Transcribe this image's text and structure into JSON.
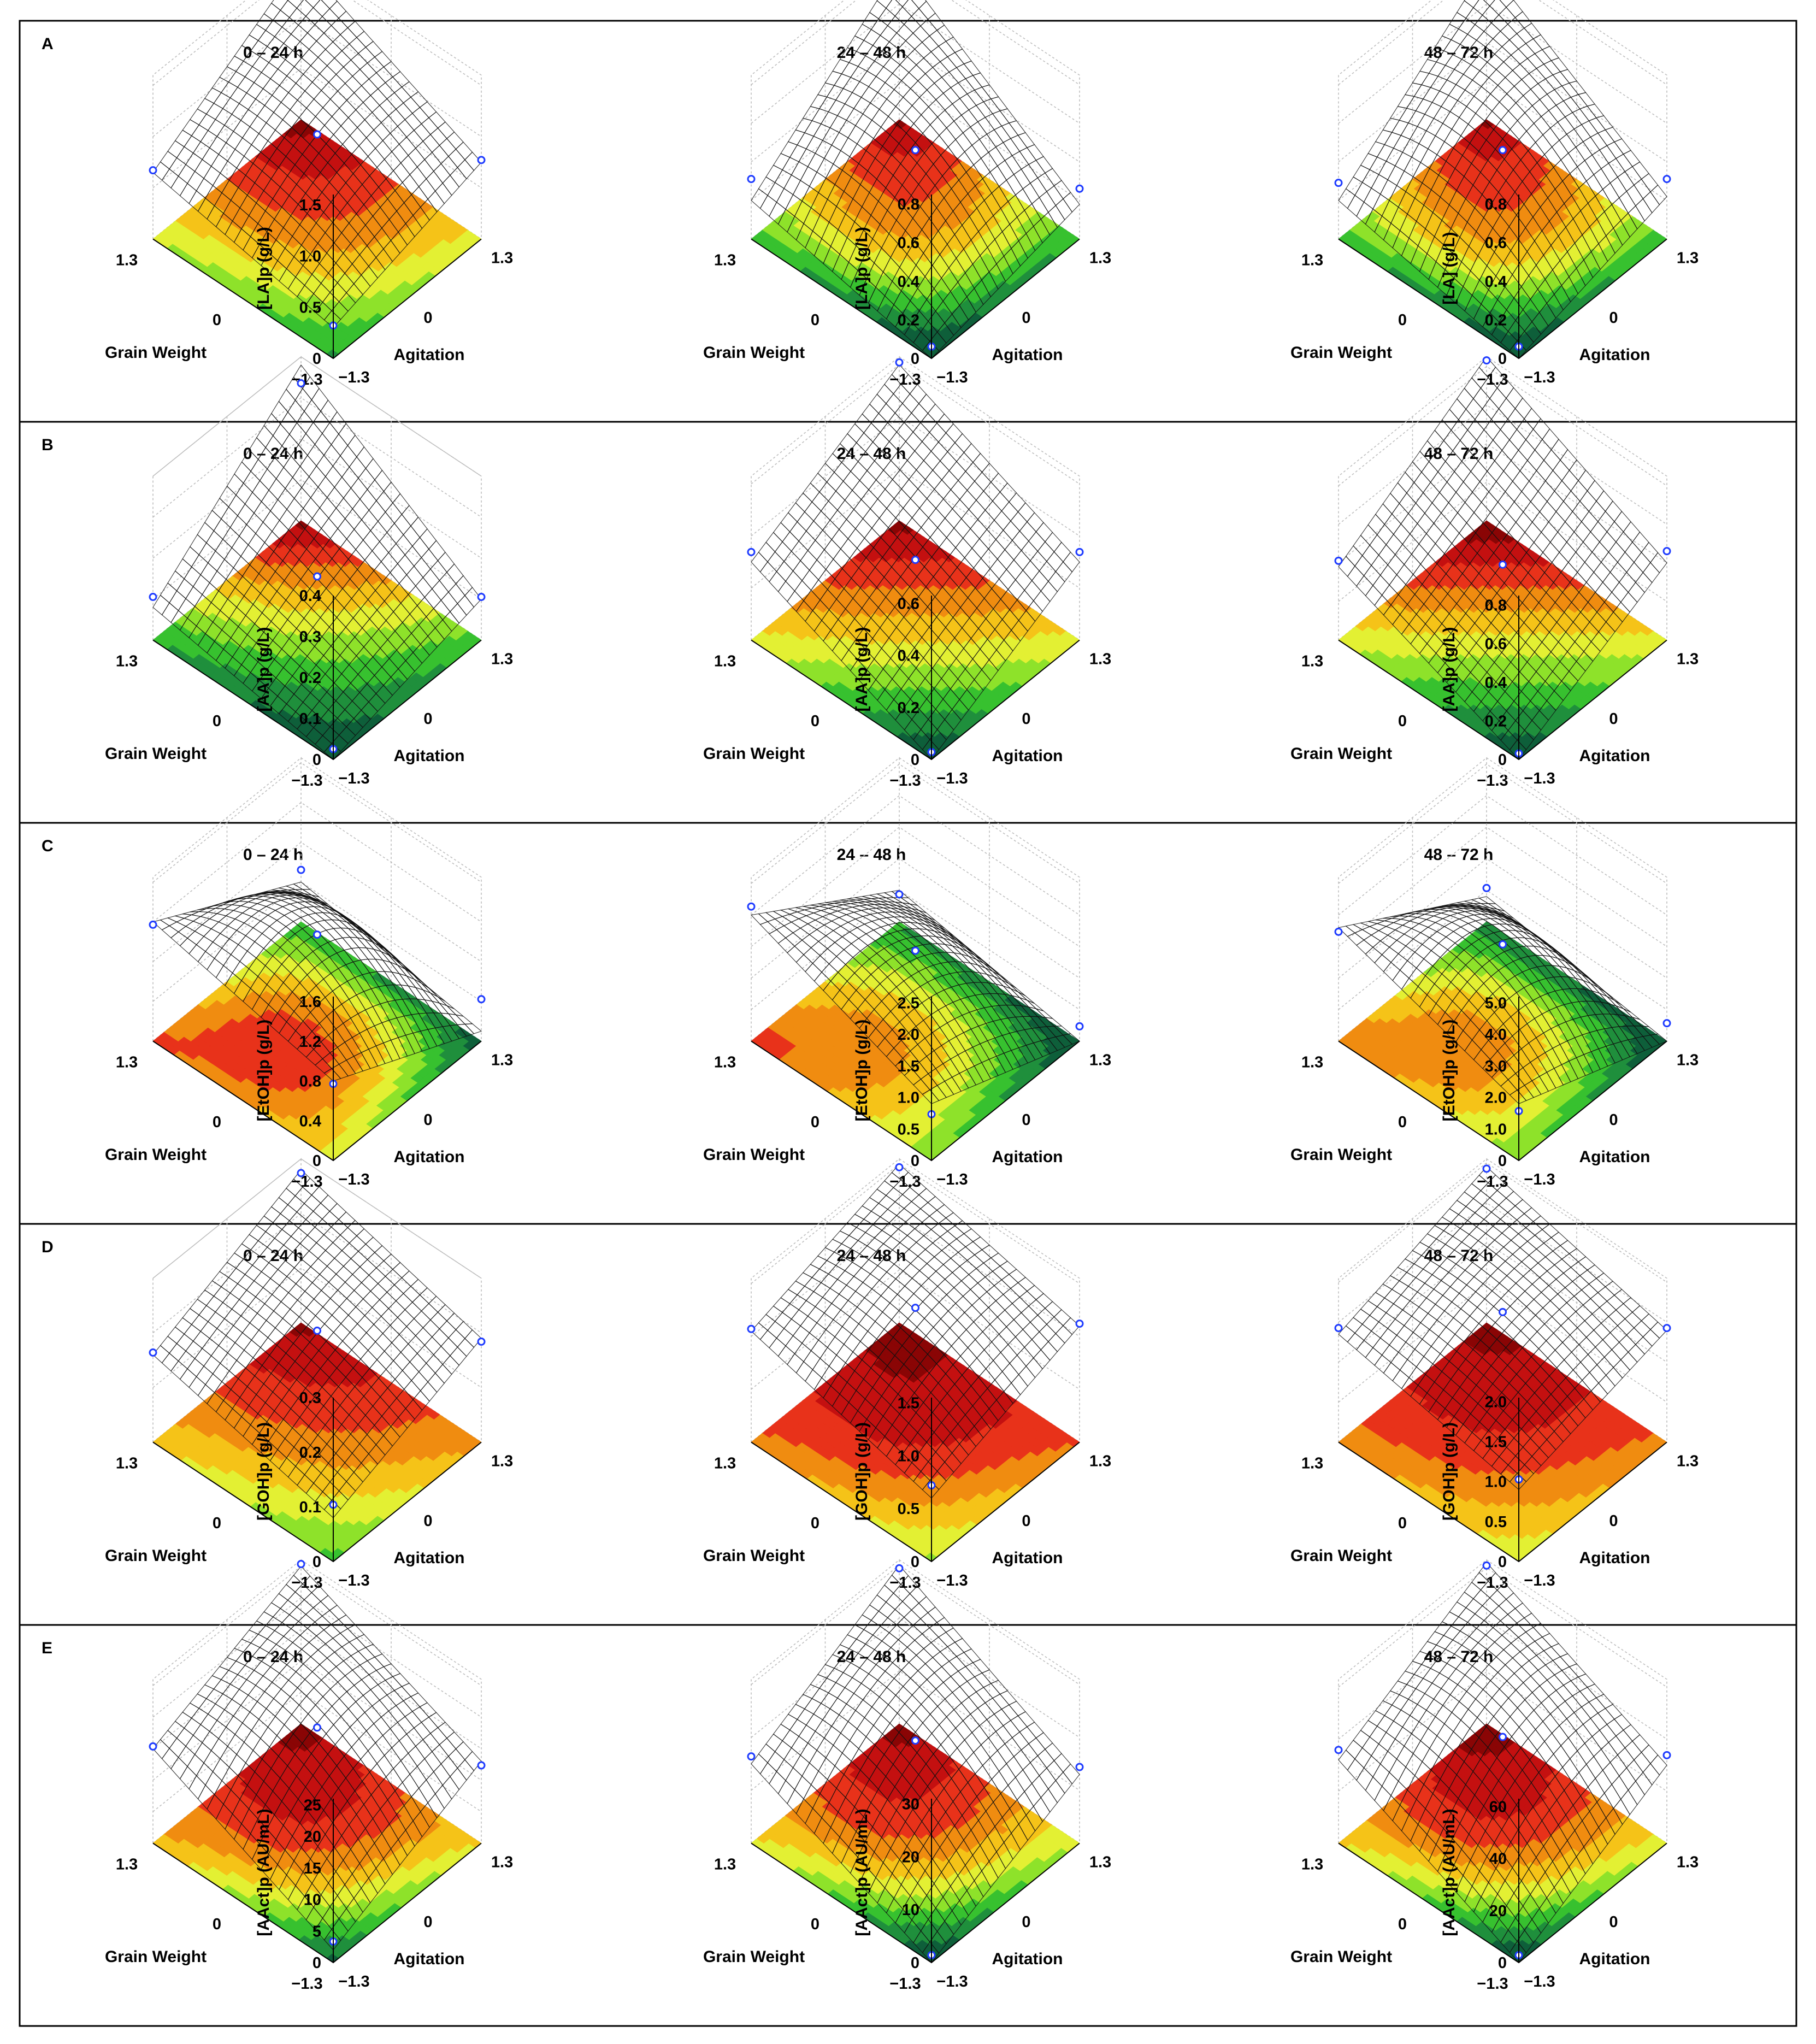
{
  "colors": {
    "palette": [
      "#0e5f3a",
      "#1f8f3c",
      "#37c12f",
      "#8ee22a",
      "#e3f033",
      "#f5c318",
      "#f08c10",
      "#e8321a",
      "#c41010",
      "#8a0505"
    ],
    "data_point": "#1f3cff"
  },
  "rows": [
    {
      "letter": "A",
      "panels": [
        {
          "title": "0 – 24 h",
          "zlabel": "[LA]p (g/L)",
          "zticks": [
            "0",
            "0.5",
            "1.0",
            "1.5"
          ],
          "zmax": 1.6
        },
        {
          "title": "24 – 48 h",
          "zlabel": "[LA]p (g/L)",
          "zticks": [
            "0",
            "0.2",
            "0.4",
            "0.6",
            "0.8"
          ],
          "zmax": 0.85
        },
        {
          "title": "48 – 72 h",
          "zlabel": "[LA] (g/L)",
          "zticks": [
            "0",
            "0.2",
            "0.4",
            "0.6",
            "0.8"
          ],
          "zmax": 0.85
        }
      ]
    },
    {
      "letter": "B",
      "panels": [
        {
          "title": "0 – 24 h",
          "zlabel": "[AA]p (g/L)",
          "zticks": [
            "0",
            "0.1",
            "0.2",
            "0.3",
            "0.4"
          ],
          "zmax": 0.4
        },
        {
          "title": "24 – 48 h",
          "zlabel": "[AA]p (g/L)",
          "zticks": [
            "0",
            "0.2",
            "0.4",
            "0.6"
          ],
          "zmax": 0.63
        },
        {
          "title": "48 – 72 h",
          "zlabel": "[AA]p (g/L)",
          "zticks": [
            "0",
            "0.2",
            "0.4",
            "0.6",
            "0.8"
          ],
          "zmax": 0.85
        }
      ]
    },
    {
      "letter": "C",
      "panels": [
        {
          "title": "0 – 24 h",
          "zlabel": "[EtOH]p (g/L)",
          "zticks": [
            "0",
            "0.4",
            "0.8",
            "1.2",
            "1.6"
          ],
          "zmax": 1.65
        },
        {
          "title": "24 – 48 h",
          "zlabel": "[EtOH]p (g/L)",
          "zticks": [
            "0",
            "0.5",
            "1.0",
            "1.5",
            "2.0",
            "2.5"
          ],
          "zmax": 2.6
        },
        {
          "title": "48 – 72 h",
          "zlabel": "[EtOH]p (g/L)",
          "zticks": [
            "0",
            "1.0",
            "2.0",
            "3.0",
            "4.0",
            "5.0"
          ],
          "zmax": 5.2
        }
      ]
    },
    {
      "letter": "D",
      "panels": [
        {
          "title": "0 – 24 h",
          "zlabel": "[GOH]p (g/L)",
          "zticks": [
            "0",
            "0.1",
            "0.2",
            "0.3"
          ],
          "zmax": 0.3
        },
        {
          "title": "24 – 48 h",
          "zlabel": "[GOH]p (g/L)",
          "zticks": [
            "0",
            "0.5",
            "1.0",
            "1.5"
          ],
          "zmax": 1.55
        },
        {
          "title": "48 – 72 h",
          "zlabel": "[GOH]p (g/L)",
          "zticks": [
            "0",
            "0.5",
            "1.0",
            "1.5",
            "2.0"
          ],
          "zmax": 2.05
        }
      ]
    },
    {
      "letter": "E",
      "panels": [
        {
          "title": "0 – 24 h",
          "zlabel": "[AAct]p (AU/mL)",
          "zticks": [
            "0",
            "5",
            "10",
            "15",
            "20",
            "25"
          ],
          "zmax": 26
        },
        {
          "title": "24 – 48 h",
          "zlabel": "[AAct]p (AU/mL)",
          "zticks": [
            "0",
            "10",
            "20",
            "30"
          ],
          "zmax": 31
        },
        {
          "title": "48 – 72 h",
          "zlabel": "[AAct]p (AU/mL)",
          "zticks": [
            "0",
            "20",
            "40",
            "60"
          ],
          "zmax": 63
        }
      ]
    }
  ],
  "chart_data": {
    "type": "surface",
    "x_axis": {
      "label": "Agitation",
      "ticks": [
        "−1.3",
        "0",
        "1.3"
      ],
      "range": [
        -1.3,
        1.3
      ]
    },
    "y_axis": {
      "label": "Grain Weight",
      "ticks": [
        "−1.3",
        "0",
        "1.3"
      ],
      "range": [
        -1.3,
        1.3
      ]
    },
    "grid": true,
    "surfaces": [
      {
        "row": "A",
        "period": "0 – 24 h",
        "z_label": "[LA]p (g/L)",
        "corners": {
          "gw_low_ag_low": 0.3,
          "gw_high_ag_low": 0.65,
          "gw_low_ag_high": 0.75,
          "gw_high_ag_high": 1.55
        },
        "center": 1.02,
        "points": [
          [
            -1.3,
            -1.3,
            0.3
          ],
          [
            1.3,
            -1.3,
            0.65
          ],
          [
            -1.3,
            1.3,
            0.75
          ],
          [
            1.3,
            1.3,
            1.55
          ],
          [
            0,
            0,
            1.0
          ]
        ]
      },
      {
        "row": "A",
        "period": "24 – 48 h",
        "z_label": "[LA]p (g/L)",
        "corners": {
          "gw_low_ag_low": 0.0,
          "gw_high_ag_low": 0.2,
          "gw_low_ag_high": 0.18,
          "gw_high_ag_high": 0.8
        },
        "center": 0.5,
        "points": [
          [
            -1.3,
            -1.3,
            0.05
          ],
          [
            1.3,
            -1.3,
            0.3
          ],
          [
            -1.3,
            1.3,
            0.25
          ],
          [
            1.3,
            1.3,
            0.82
          ],
          [
            0,
            0,
            0.45
          ]
        ]
      },
      {
        "row": "A",
        "period": "48 – 72 h",
        "z_label": "[LA] (g/L)",
        "corners": {
          "gw_low_ag_low": 0.0,
          "gw_high_ag_low": 0.2,
          "gw_low_ag_high": 0.22,
          "gw_high_ag_high": 0.8
        },
        "center": 0.52,
        "points": [
          [
            -1.3,
            -1.3,
            0.05
          ],
          [
            1.3,
            -1.3,
            0.28
          ],
          [
            -1.3,
            1.3,
            0.3
          ],
          [
            1.3,
            1.3,
            0.82
          ],
          [
            0,
            0,
            0.45
          ]
        ]
      },
      {
        "row": "B",
        "period": "0 – 24 h",
        "z_label": "[AA]p (g/L)",
        "corners": {
          "gw_low_ag_low": 0.0,
          "gw_high_ag_low": 0.08,
          "gw_low_ag_high": 0.1,
          "gw_high_ag_high": 0.38
        },
        "center": 0.15,
        "points": [
          [
            -1.3,
            -1.3,
            0.02
          ],
          [
            1.3,
            -1.3,
            0.1
          ],
          [
            -1.3,
            1.3,
            0.1
          ],
          [
            1.3,
            1.3,
            0.33
          ],
          [
            0,
            0,
            0.15
          ]
        ]
      },
      {
        "row": "B",
        "period": "24 – 48 h",
        "z_label": "[AA]p (g/L)",
        "corners": {
          "gw_low_ag_low": 0.0,
          "gw_high_ag_low": 0.3,
          "gw_low_ag_high": 0.3,
          "gw_high_ag_high": 0.6
        },
        "center": 0.32,
        "points": [
          [
            -1.3,
            -1.3,
            0.02
          ],
          [
            1.3,
            -1.3,
            0.33
          ],
          [
            -1.3,
            1.3,
            0.33
          ],
          [
            1.3,
            1.3,
            0.6
          ],
          [
            0,
            0,
            0.3
          ]
        ]
      },
      {
        "row": "B",
        "period": "48 – 72 h",
        "z_label": "[AA]p (g/L)",
        "corners": {
          "gw_low_ag_low": 0.0,
          "gw_high_ag_low": 0.38,
          "gw_low_ag_high": 0.4,
          "gw_high_ag_high": 0.85
        },
        "center": 0.4,
        "points": [
          [
            -1.3,
            -1.3,
            0.02
          ],
          [
            1.3,
            -1.3,
            0.4
          ],
          [
            -1.3,
            1.3,
            0.45
          ],
          [
            1.3,
            1.3,
            0.82
          ],
          [
            0,
            0,
            0.38
          ]
        ]
      },
      {
        "row": "C",
        "period": "0 – 24 h",
        "z_label": "[EtOH]p (g/L)",
        "corners": {
          "gw_low_ag_low": 0.8,
          "gw_high_ag_low": 1.2,
          "gw_low_ag_high": 0.1,
          "gw_high_ag_high": 0.4
        },
        "center": 1.2,
        "points": [
          [
            -1.3,
            -1.3,
            0.75
          ],
          [
            1.3,
            -1.3,
            1.15
          ],
          [
            -1.3,
            1.3,
            0.4
          ],
          [
            1.3,
            1.3,
            0.5
          ],
          [
            0,
            0,
            1.05
          ]
        ]
      },
      {
        "row": "C",
        "period": "24 – 48 h",
        "z_label": "[EtOH]p (g/L)",
        "corners": {
          "gw_low_ag_low": 0.9,
          "gw_high_ag_low": 2.0,
          "gw_low_ag_high": 0.0,
          "gw_high_ag_high": 0.5
        },
        "center": 1.5,
        "points": [
          [
            -1.3,
            -1.3,
            0.7
          ],
          [
            1.3,
            -1.3,
            2.1
          ],
          [
            -1.3,
            1.3,
            0.2
          ],
          [
            1.3,
            1.3,
            0.4
          ],
          [
            0,
            0,
            1.4
          ]
        ]
      },
      {
        "row": "C",
        "period": "48 – 72 h",
        "z_label": "[EtOH]p (g/L)",
        "corners": {
          "gw_low_ag_low": 1.8,
          "gw_high_ag_low": 3.6,
          "gw_low_ag_high": 0.0,
          "gw_high_ag_high": 0.8
        },
        "center": 3.2,
        "points": [
          [
            -1.3,
            -1.3,
            1.5
          ],
          [
            1.3,
            -1.3,
            3.4
          ],
          [
            -1.3,
            1.3,
            0.5
          ],
          [
            1.3,
            1.3,
            1.0
          ],
          [
            0,
            0,
            3.0
          ]
        ]
      },
      {
        "row": "D",
        "period": "0 – 24 h",
        "z_label": "[GOH]p (g/L)",
        "corners": {
          "gw_low_ag_low": 0.08,
          "gw_high_ag_low": 0.16,
          "gw_low_ag_high": 0.19,
          "gw_high_ag_high": 0.28
        },
        "center": 0.2,
        "points": [
          [
            -1.3,
            -1.3,
            0.1
          ],
          [
            1.3,
            -1.3,
            0.16
          ],
          [
            -1.3,
            1.3,
            0.18
          ],
          [
            1.3,
            1.3,
            0.27
          ],
          [
            0,
            0,
            0.2
          ]
        ]
      },
      {
        "row": "D",
        "period": "24 – 48 h",
        "z_label": "[GOH]p (g/L)",
        "corners": {
          "gw_low_ag_low": 0.6,
          "gw_high_ag_low": 1.05,
          "gw_low_ag_high": 1.1,
          "gw_high_ag_high": 1.5
        },
        "center": 1.25,
        "points": [
          [
            -1.3,
            -1.3,
            0.7
          ],
          [
            1.3,
            -1.3,
            1.05
          ],
          [
            -1.3,
            1.3,
            1.1
          ],
          [
            1.3,
            1.3,
            1.45
          ],
          [
            0,
            0,
            1.25
          ]
        ]
      },
      {
        "row": "D",
        "period": "48 – 72 h",
        "z_label": "[GOH]p (g/L)",
        "corners": {
          "gw_low_ag_low": 0.9,
          "gw_high_ag_low": 1.35,
          "gw_low_ag_high": 1.4,
          "gw_high_ag_high": 1.95
        },
        "center": 1.6,
        "points": [
          [
            -1.3,
            -1.3,
            1.0
          ],
          [
            1.3,
            -1.3,
            1.4
          ],
          [
            -1.3,
            1.3,
            1.4
          ],
          [
            1.3,
            1.3,
            1.9
          ],
          [
            0,
            0,
            1.6
          ]
        ]
      },
      {
        "row": "E",
        "period": "0 – 24 h",
        "z_label": "[AAct]p (AU/mL)",
        "corners": {
          "gw_low_ag_low": 2,
          "gw_high_ag_low": 15,
          "gw_low_ag_high": 13,
          "gw_high_ag_high": 25
        },
        "center": 19,
        "points": [
          [
            -1.3,
            -1.3,
            3
          ],
          [
            1.3,
            -1.3,
            15
          ],
          [
            -1.3,
            1.3,
            12
          ],
          [
            1.3,
            1.3,
            25
          ],
          [
            0,
            0,
            18
          ]
        ]
      },
      {
        "row": "E",
        "period": "24 – 48 h",
        "z_label": "[AAct]p (AU/mL)",
        "corners": {
          "gw_low_ag_low": 0,
          "gw_high_ag_low": 15,
          "gw_low_ag_high": 13,
          "gw_high_ag_high": 30
        },
        "center": 21,
        "points": [
          [
            -1.3,
            -1.3,
            1
          ],
          [
            1.3,
            -1.3,
            16
          ],
          [
            -1.3,
            1.3,
            14
          ],
          [
            1.3,
            1.3,
            29
          ],
          [
            0,
            0,
            19
          ]
        ]
      },
      {
        "row": "E",
        "period": "48 – 72 h",
        "z_label": "[AAct]p (AU/mL)",
        "corners": {
          "gw_low_ag_low": 0,
          "gw_high_ag_low": 32,
          "gw_low_ag_high": 30,
          "gw_high_ag_high": 62
        },
        "center": 45,
        "points": [
          [
            -1.3,
            -1.3,
            2
          ],
          [
            1.3,
            -1.3,
            35
          ],
          [
            -1.3,
            1.3,
            33
          ],
          [
            1.3,
            1.3,
            60
          ],
          [
            0,
            0,
            40
          ]
        ]
      }
    ]
  }
}
